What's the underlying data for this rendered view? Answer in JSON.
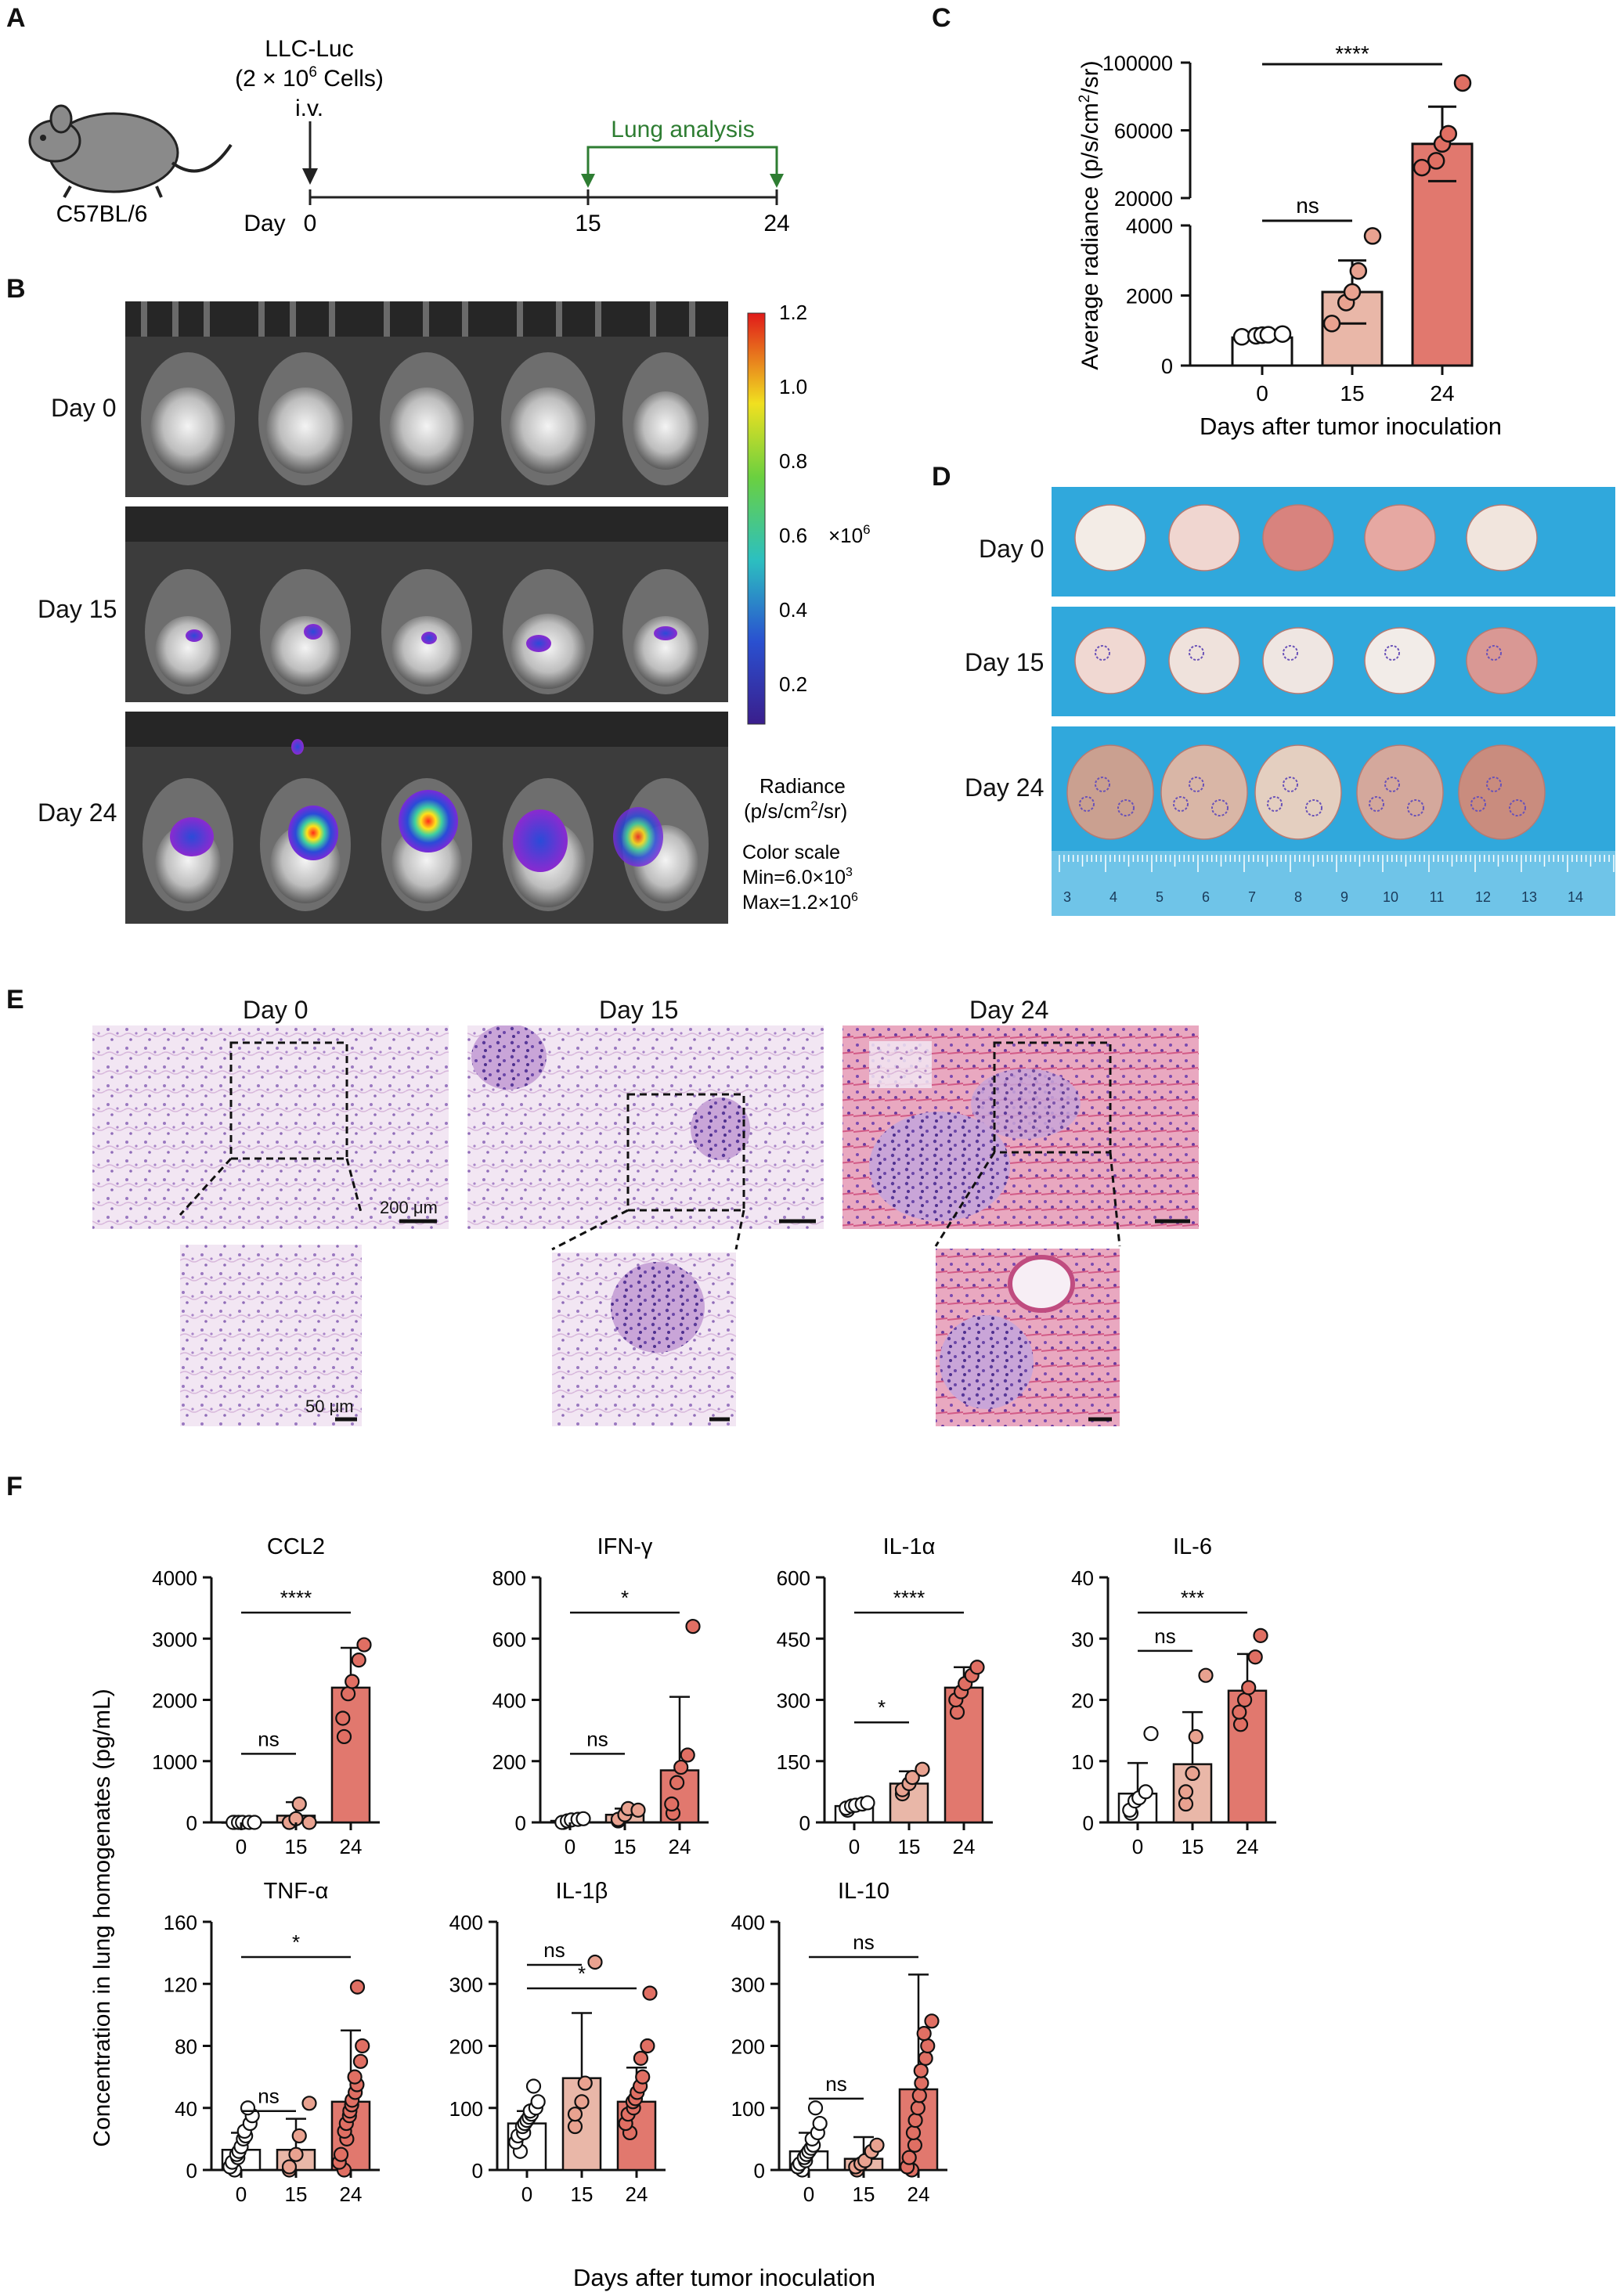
{
  "panels": {
    "A": "A",
    "B": "B",
    "C": "C",
    "D": "D",
    "E": "E",
    "F": "F"
  },
  "panelA": {
    "strain": "C57BL/6",
    "cells_line1": "LLC-Luc",
    "cells_line2_pre": "(2 × 10",
    "cells_line2_sup": "6",
    "cells_line2_post": " Cells)",
    "route": "i.v.",
    "lung_analysis": "Lung analysis",
    "day_label": "Day",
    "ticks": [
      "0",
      "15",
      "24"
    ],
    "colors": {
      "arrow": "#222222",
      "lung": "#2e7d32"
    }
  },
  "panelB": {
    "rows": [
      "Day 0",
      "Day 15",
      "Day 24"
    ],
    "colorbar_ticks": [
      "1.2",
      "1.0",
      "0.8",
      "0.6",
      "0.4",
      "0.2"
    ],
    "multiplier_pre": "×10",
    "multiplier_sup": "6",
    "radiance_title": "Radiance",
    "radiance_unit_pre": "(p/s/cm",
    "radiance_unit_sup": "2",
    "radiance_unit_post": "/sr)",
    "color_scale": "Color scale",
    "min_pre": "Min=6.0×10",
    "min_sup": "3",
    "max_pre": "Max=1.2×10",
    "max_sup": "6"
  },
  "panelC": {
    "ylabel_pre": "Average radiance (p/s/cm",
    "ylabel_sup": "2",
    "ylabel_post": "/sr)",
    "xlabel": "Days after tumor inoculation",
    "upper_ticks": [
      "100000",
      "60000",
      "20000"
    ],
    "lower_ticks": [
      "4000",
      "2000",
      "0"
    ],
    "ns": "ns",
    "stars": "****"
  },
  "panelD": {
    "rows": [
      "Day 0",
      "Day 15",
      "Day 24"
    ],
    "ruler": [
      "3",
      "4",
      "5",
      "6",
      "7",
      "8",
      "9",
      "10",
      "11",
      "12",
      "13",
      "14"
    ]
  },
  "panelE": {
    "columns": [
      "Day 0",
      "Day 15",
      "Day 24"
    ],
    "scale_large": "200 μm",
    "scale_small": "50 μm"
  },
  "panelF": {
    "ylabel": "Concentration in lung homogenates (pg/mL)",
    "xlabel": "Days after tumor inoculation"
  },
  "chart_data": [
    {
      "type": "bar",
      "panel": "C",
      "categories": [
        "0",
        "15",
        "24"
      ],
      "values": [
        800,
        2100,
        52000
      ],
      "errors": [
        0,
        900,
        22000
      ],
      "points": [
        [
          820,
          850,
          870,
          880,
          900
        ],
        [
          1200,
          1800,
          2100,
          2700,
          3700
        ],
        [
          38000,
          42000,
          52000,
          58000,
          88000
        ]
      ],
      "axis_break": [
        4000,
        20000
      ],
      "ylim": [
        0,
        100000
      ],
      "ylabel": "Average radiance (p/s/cm2/sr)",
      "xlabel": "Days after tumor inoculation",
      "significance": [
        {
          "pair": [
            "0",
            "15"
          ],
          "label": "ns"
        },
        {
          "pair": [
            "0",
            "24"
          ],
          "label": "****"
        }
      ]
    },
    {
      "type": "bar",
      "panel": "F",
      "title": "CCL2",
      "categories": [
        "0",
        "15",
        "24"
      ],
      "values": [
        0,
        110,
        2200
      ],
      "errors": [
        0,
        220,
        650
      ],
      "ylim": [
        0,
        4000
      ],
      "yticks": [
        "0",
        "1000",
        "2000",
        "3000",
        "4000"
      ],
      "points": [
        [
          0,
          0,
          0,
          0,
          0,
          0
        ],
        [
          0,
          0,
          60,
          300,
          0
        ],
        [
          1400,
          1700,
          2100,
          2300,
          2650,
          2900
        ]
      ],
      "significance": [
        {
          "pair": [
            "0",
            "15"
          ],
          "label": "ns"
        },
        {
          "pair": [
            "0",
            "24"
          ],
          "label": "****"
        }
      ]
    },
    {
      "type": "bar",
      "panel": "F",
      "title": "IFN-γ",
      "categories": [
        "0",
        "15",
        "24"
      ],
      "values": [
        5,
        25,
        170
      ],
      "errors": [
        0,
        20,
        240
      ],
      "ylim": [
        0,
        800
      ],
      "yticks": [
        "0",
        "200",
        "400",
        "600",
        "800"
      ],
      "points": [
        [
          0,
          0,
          5,
          8,
          10,
          12
        ],
        [
          5,
          10,
          25,
          45,
          40
        ],
        [
          30,
          60,
          130,
          180,
          220,
          640
        ]
      ],
      "significance": [
        {
          "pair": [
            "0",
            "15"
          ],
          "label": "ns"
        },
        {
          "pair": [
            "0",
            "24"
          ],
          "label": "*"
        }
      ]
    },
    {
      "type": "bar",
      "panel": "F",
      "title": "IL-1α",
      "categories": [
        "0",
        "15",
        "24"
      ],
      "values": [
        40,
        95,
        330
      ],
      "errors": [
        5,
        30,
        50
      ],
      "ylim": [
        0,
        600
      ],
      "yticks": [
        "0",
        "150",
        "300",
        "450",
        "600"
      ],
      "points": [
        [
          30,
          35,
          40,
          42,
          45,
          48
        ],
        [
          70,
          80,
          95,
          110,
          130
        ],
        [
          270,
          300,
          320,
          340,
          360,
          380
        ]
      ],
      "significance": [
        {
          "pair": [
            "0",
            "15"
          ],
          "label": "*"
        },
        {
          "pair": [
            "0",
            "24"
          ],
          "label": "****"
        }
      ]
    },
    {
      "type": "bar",
      "panel": "F",
      "title": "IL-6",
      "categories": [
        "0",
        "15",
        "24"
      ],
      "values": [
        4.7,
        9.5,
        21.5
      ],
      "errors": [
        5,
        8.5,
        6
      ],
      "ylim": [
        0,
        40
      ],
      "yticks": [
        "0",
        "10",
        "20",
        "30",
        "40"
      ],
      "points": [
        [
          1.5,
          2,
          3.5,
          4,
          5,
          14.5
        ],
        [
          3,
          5,
          8,
          14,
          24
        ],
        [
          16,
          18,
          20,
          22,
          27,
          30.5
        ]
      ],
      "significance": [
        {
          "pair": [
            "0",
            "15"
          ],
          "label": "ns"
        },
        {
          "pair": [
            "0",
            "24"
          ],
          "label": "***"
        }
      ]
    },
    {
      "type": "bar",
      "panel": "F",
      "title": "TNF-α",
      "categories": [
        "0",
        "15",
        "24"
      ],
      "values": [
        13,
        13,
        44
      ],
      "errors": [
        11,
        20,
        46
      ],
      "ylim": [
        0,
        160
      ],
      "yticks": [
        "0",
        "40",
        "80",
        "120",
        "160"
      ],
      "points": [
        [
          0,
          2,
          5,
          8,
          10,
          12,
          15,
          20,
          22,
          25,
          30,
          35,
          40
        ],
        [
          0,
          2,
          10,
          22,
          43
        ],
        [
          0,
          5,
          10,
          20,
          25,
          30,
          35,
          38,
          42,
          45,
          50,
          55,
          60,
          70,
          80,
          118
        ]
      ],
      "significance": [
        {
          "pair": [
            "0",
            "15"
          ],
          "label": "ns"
        },
        {
          "pair": [
            "0",
            "24"
          ],
          "label": "*"
        }
      ]
    },
    {
      "type": "bar",
      "panel": "F",
      "title": "IL-1β",
      "categories": [
        "0",
        "15",
        "24"
      ],
      "values": [
        75,
        148,
        110
      ],
      "errors": [
        20,
        105,
        55
      ],
      "ylim": [
        0,
        400
      ],
      "yticks": [
        "0",
        "100",
        "200",
        "300",
        "400"
      ],
      "points": [
        [
          30,
          45,
          55,
          60,
          70,
          75,
          80,
          85,
          90,
          95,
          100,
          110,
          135
        ],
        [
          70,
          90,
          110,
          140,
          335
        ],
        [
          60,
          75,
          90,
          100,
          110,
          115,
          125,
          135,
          150,
          180,
          200,
          285
        ]
      ],
      "significance": [
        {
          "pair": [
            "0",
            "15"
          ],
          "label": "ns"
        },
        {
          "pair": [
            "0",
            "24"
          ],
          "label": "*"
        }
      ]
    },
    {
      "type": "bar",
      "panel": "F",
      "title": "IL-10",
      "categories": [
        "0",
        "15",
        "24"
      ],
      "values": [
        30,
        18,
        130
      ],
      "errors": [
        30,
        35,
        185
      ],
      "ylim": [
        0,
        400
      ],
      "yticks": [
        "0",
        "100",
        "200",
        "300",
        "400"
      ],
      "points": [
        [
          0,
          5,
          10,
          15,
          20,
          25,
          30,
          35,
          40,
          50,
          60,
          75,
          100
        ],
        [
          0,
          5,
          10,
          15,
          30,
          40
        ],
        [
          0,
          5,
          20,
          40,
          60,
          80,
          100,
          120,
          140,
          160,
          180,
          200,
          220,
          240
        ]
      ],
      "significance": [
        {
          "pair": [
            "0",
            "15"
          ],
          "label": "ns"
        },
        {
          "pair": [
            "0",
            "24"
          ],
          "label": "ns"
        }
      ]
    }
  ],
  "colors": {
    "bar0": "#ffffff",
    "bar15": "#e9b7a8",
    "bar24": "#e1786e",
    "dot15": "#e9a290",
    "dot24": "#e06f63",
    "blue_bg": "#30a8dc",
    "pointer_bg": "#3a3a3a"
  }
}
